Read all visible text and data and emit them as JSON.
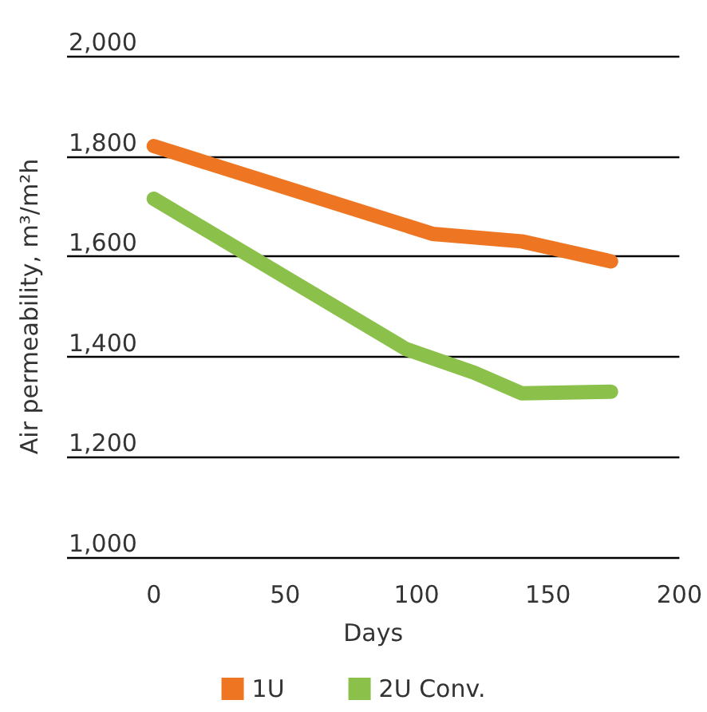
{
  "chart_data": {
    "type": "line",
    "xlabel": "Days",
    "ylabel": "Air permeability, m³/m²h",
    "xlim": [
      -33,
      200
    ],
    "xticks": [
      0,
      50,
      100,
      150,
      200
    ],
    "ylim": [
      1000,
      2000
    ],
    "yticks": [
      {
        "value": 1000,
        "label": "1,000"
      },
      {
        "value": 1200,
        "label": "1,200"
      },
      {
        "value": 1400,
        "label": "1,400"
      },
      {
        "value": 1600,
        "label": "1,600"
      },
      {
        "value": 1800,
        "label": "1,800"
      },
      {
        "value": 2000,
        "label": "2,000"
      }
    ],
    "grid": "y",
    "legend": "bottom",
    "series": [
      {
        "name": "1U",
        "color": "#ee7623",
        "x": [
          0,
          106,
          140,
          174
        ],
        "values": [
          1820,
          1645,
          1630,
          1590
        ]
      },
      {
        "name": "2U Conv.",
        "color": "#8bc04b",
        "x": [
          0,
          96,
          122,
          140,
          174
        ],
        "values": [
          1715,
          1415,
          1368,
          1327,
          1330
        ]
      }
    ]
  }
}
